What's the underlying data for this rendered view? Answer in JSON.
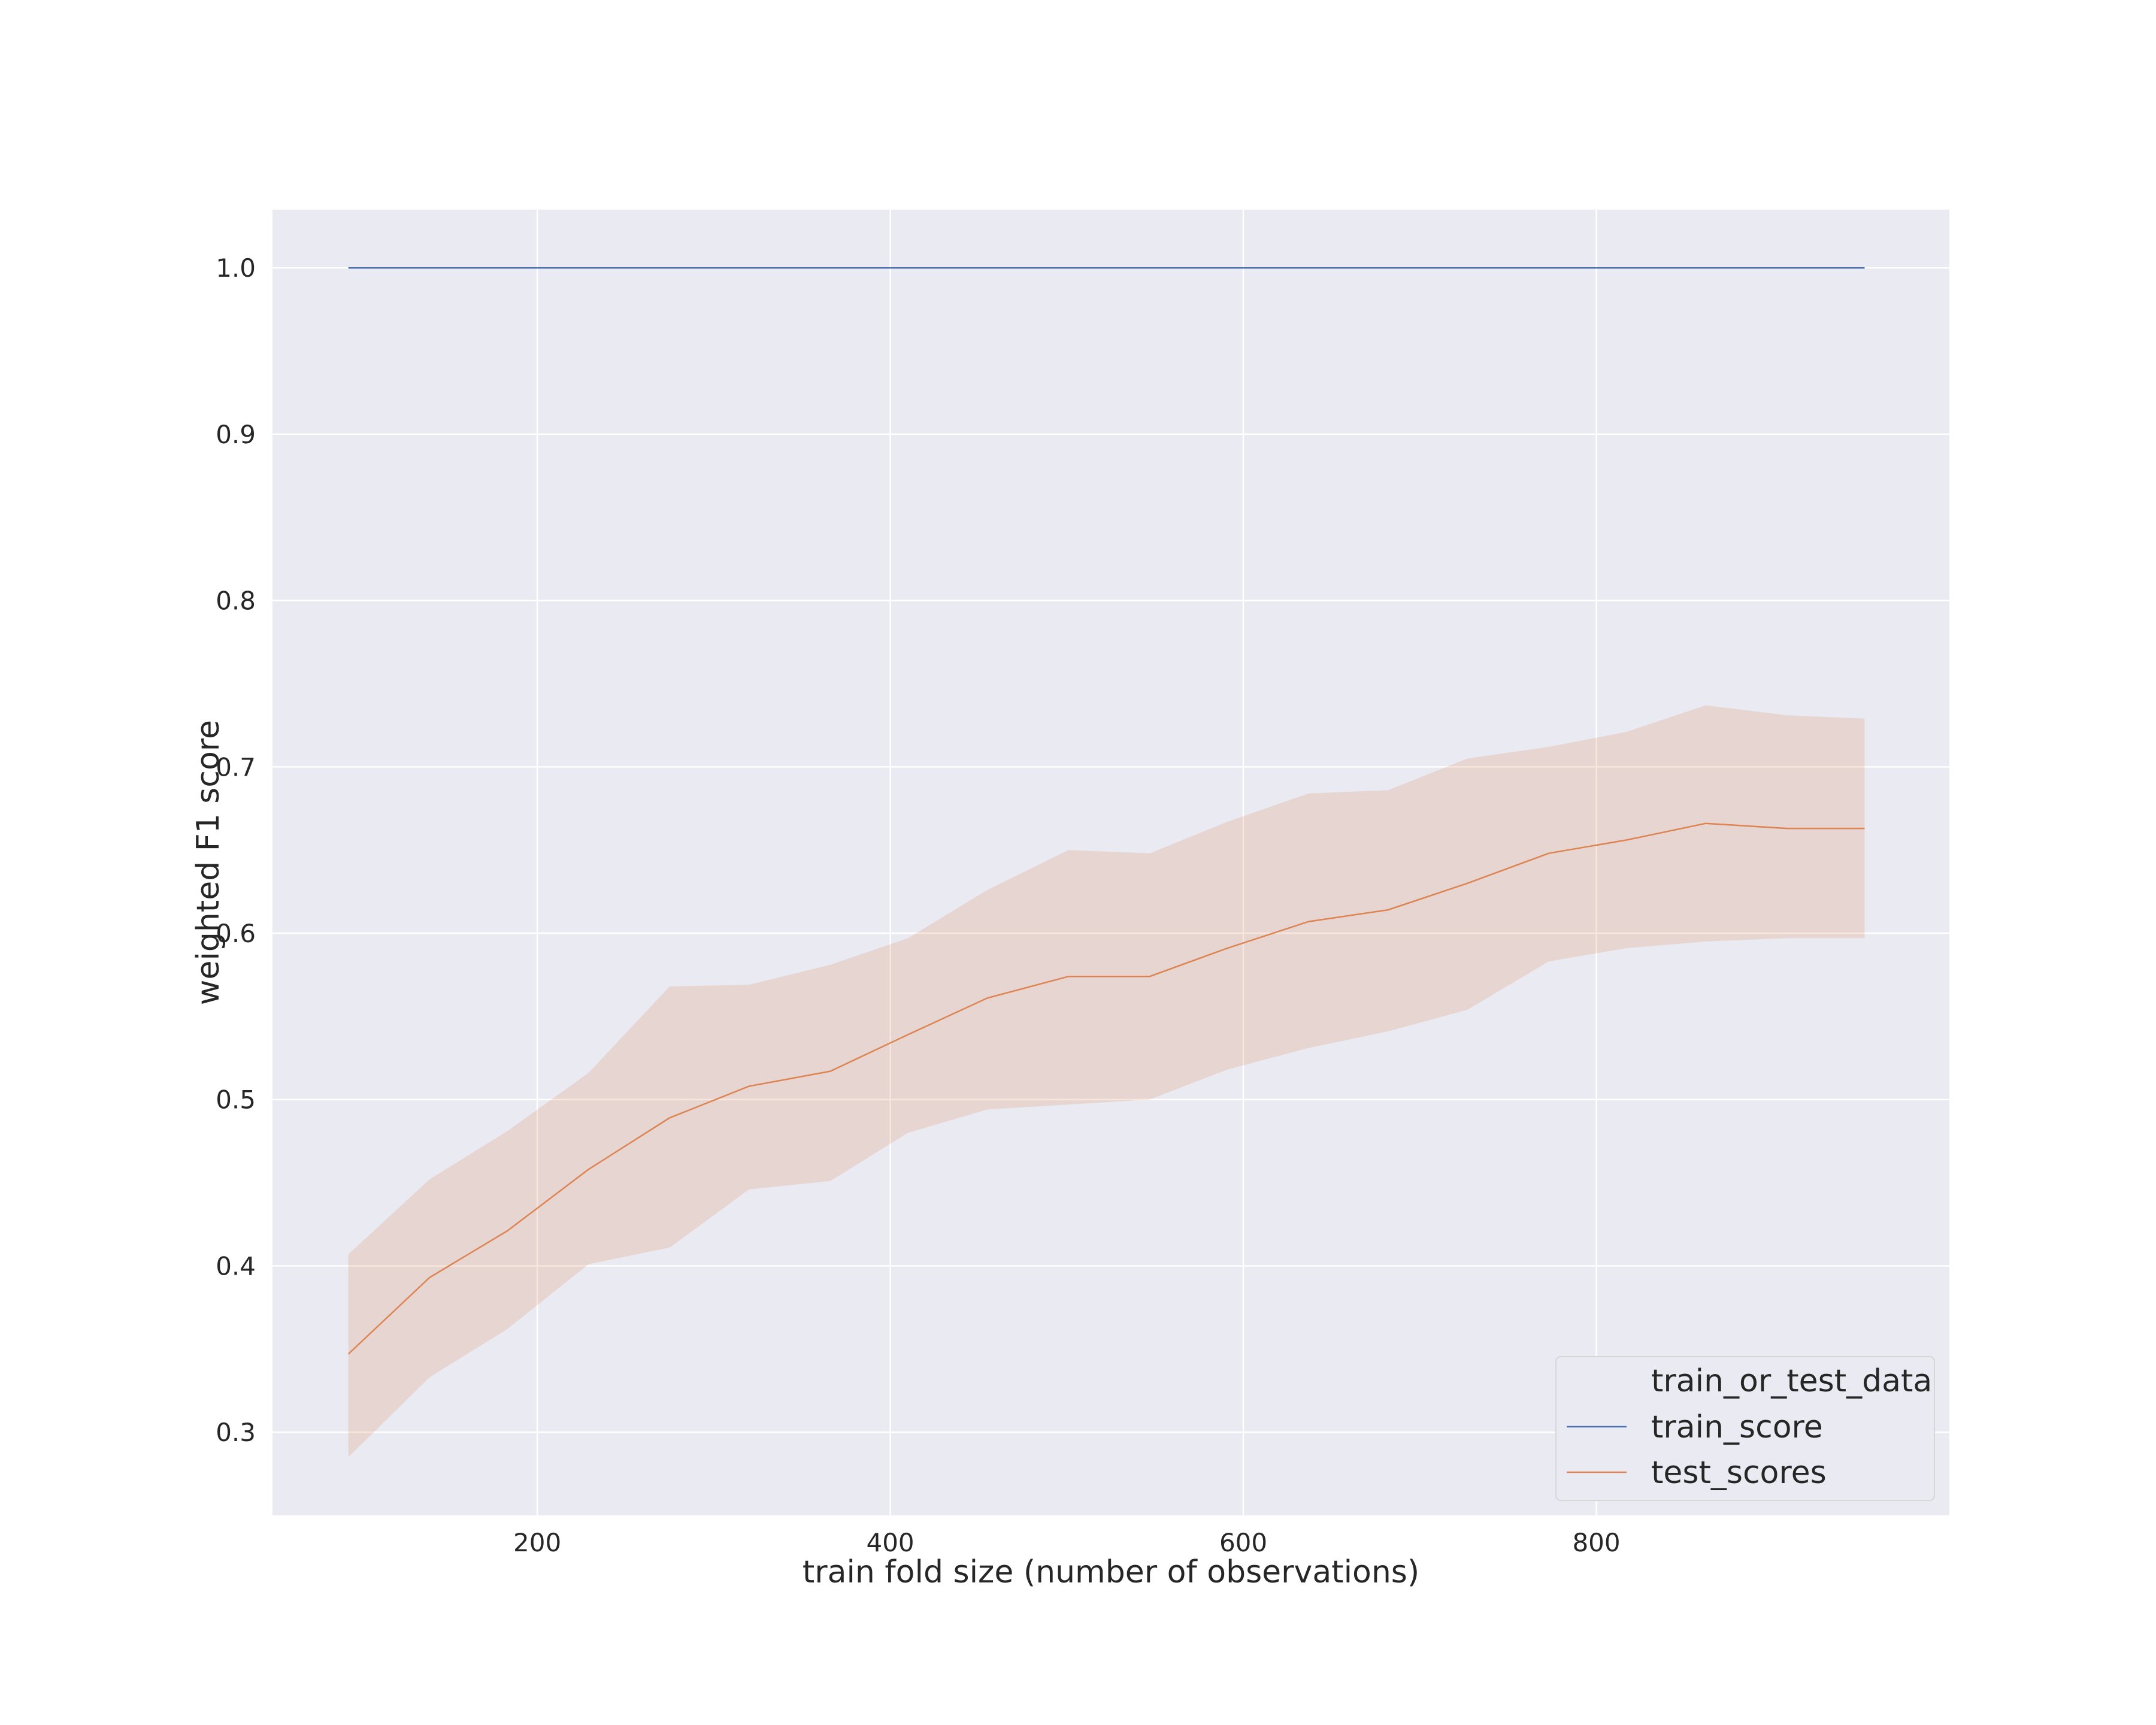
{
  "chart_data": {
    "type": "line",
    "title": "",
    "xlabel": "train fold size (number of observations)",
    "ylabel": "weighted F1 score",
    "xlim": [
      50,
      1000
    ],
    "ylim": [
      0.25,
      1.035
    ],
    "xticks": [
      200,
      400,
      600,
      800
    ],
    "xtick_labels": [
      "200",
      "400",
      "600",
      "800"
    ],
    "yticks": [
      0.3,
      0.4,
      0.5,
      0.6,
      0.7,
      0.8,
      0.9,
      1.0
    ],
    "ytick_labels": [
      "0.3",
      "0.4",
      "0.5",
      "0.6",
      "0.7",
      "0.8",
      "0.9",
      "1.0"
    ],
    "grid": true,
    "legend": {
      "title": "train_or_test_data",
      "position": "lower-right"
    },
    "x": [
      93,
      139,
      183,
      229,
      275,
      320,
      366,
      410,
      455,
      501,
      547,
      591,
      637,
      682,
      727,
      773,
      817,
      862,
      908,
      952
    ],
    "series": [
      {
        "name": "train_score",
        "color": "#4c72b0",
        "values": [
          1.0,
          1.0,
          1.0,
          1.0,
          1.0,
          1.0,
          1.0,
          1.0,
          1.0,
          1.0,
          1.0,
          1.0,
          1.0,
          1.0,
          1.0,
          1.0,
          1.0,
          1.0,
          1.0,
          1.0
        ]
      },
      {
        "name": "test_scores",
        "color": "#dd8452",
        "band_color": "#dd8452",
        "values": [
          0.347,
          0.393,
          0.421,
          0.458,
          0.489,
          0.508,
          0.517,
          0.539,
          0.561,
          0.574,
          0.574,
          0.591,
          0.607,
          0.614,
          0.63,
          0.648,
          0.656,
          0.666,
          0.663,
          0.663
        ],
        "lower": [
          0.285,
          0.333,
          0.362,
          0.401,
          0.411,
          0.446,
          0.451,
          0.48,
          0.494,
          0.497,
          0.5,
          0.518,
          0.531,
          0.541,
          0.554,
          0.583,
          0.591,
          0.595,
          0.597,
          0.597
        ],
        "upper": [
          0.407,
          0.452,
          0.481,
          0.516,
          0.568,
          0.569,
          0.581,
          0.597,
          0.626,
          0.65,
          0.648,
          0.667,
          0.684,
          0.686,
          0.705,
          0.712,
          0.721,
          0.737,
          0.731,
          0.729
        ]
      }
    ]
  },
  "colors": {
    "background": "#ffffff",
    "plot_background": "#eaeaf2",
    "grid": "#ffffff",
    "text": "#262626",
    "legend_bg": "#eaeaf2",
    "legend_border": "#d6d6d6"
  }
}
